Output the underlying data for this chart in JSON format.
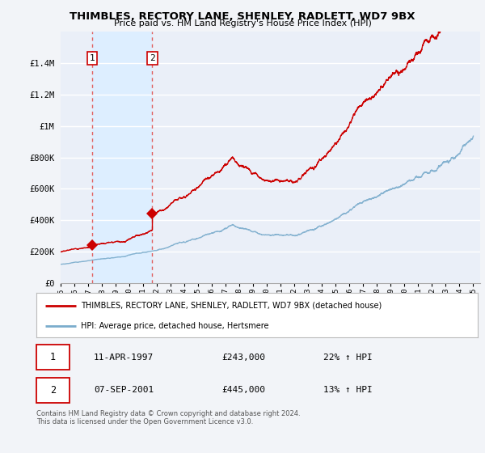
{
  "title": "THIMBLES, RECTORY LANE, SHENLEY, RADLETT, WD7 9BX",
  "subtitle": "Price paid vs. HM Land Registry's House Price Index (HPI)",
  "legend_line1": "THIMBLES, RECTORY LANE, SHENLEY, RADLETT, WD7 9BX (detached house)",
  "legend_line2": "HPI: Average price, detached house, Hertsmere",
  "transaction1_date": "11-APR-1997",
  "transaction1_price": 243000,
  "transaction1_hpi": "22% ↑ HPI",
  "transaction2_date": "07-SEP-2001",
  "transaction2_price": 445000,
  "transaction2_hpi": "13% ↑ HPI",
  "footer": "Contains HM Land Registry data © Crown copyright and database right 2024.\nThis data is licensed under the Open Government Licence v3.0.",
  "ylim": [
    0,
    1600000
  ],
  "yticks": [
    0,
    200000,
    400000,
    600000,
    800000,
    1000000,
    1200000,
    1400000
  ],
  "ytick_labels": [
    "£0",
    "£200K",
    "£400K",
    "£600K",
    "£800K",
    "£1M",
    "£1.2M",
    "£1.4M"
  ],
  "price_color": "#cc0000",
  "hpi_color": "#7aaccc",
  "vline_color": "#e06060",
  "shade_color": "#ddeeff",
  "bg_color": "#f2f4f8",
  "plot_bg": "#eaeff8",
  "grid_color": "#ffffff",
  "t1_year": 1997.28,
  "t2_year": 2001.67,
  "xstart": 1995,
  "xend": 2025
}
